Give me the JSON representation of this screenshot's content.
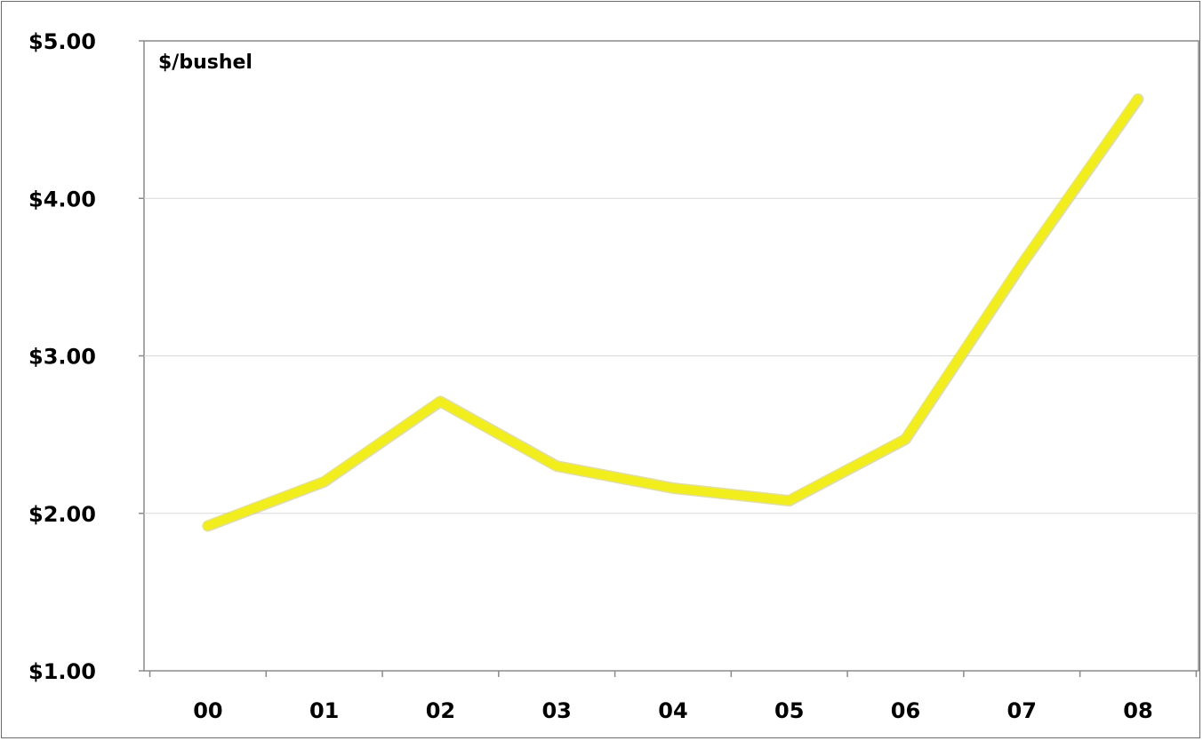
{
  "chart_data": {
    "type": "line",
    "title": "",
    "xlabel": "",
    "ylabel": "$/bushel",
    "categories": [
      "00",
      "01",
      "02",
      "03",
      "04",
      "05",
      "06",
      "07",
      "08"
    ],
    "series": [
      {
        "values": [
          1.92,
          2.2,
          2.71,
          2.3,
          2.16,
          2.08,
          2.47,
          3.58,
          4.63
        ],
        "color": "#f2ee1e"
      }
    ],
    "ylim": [
      1.0,
      5.0
    ],
    "yticks": [
      1.0,
      2.0,
      3.0,
      4.0,
      5.0
    ],
    "ytick_labels": [
      "$1.00",
      "$2.00",
      "$3.00",
      "$4.00",
      "$5.00"
    ],
    "grid": "horizontal",
    "legend": "none"
  }
}
